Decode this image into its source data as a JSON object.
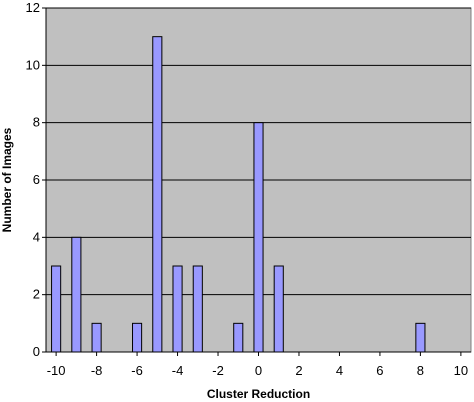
{
  "chart_data": {
    "type": "bar",
    "title": "",
    "xlabel": "Cluster Reduction",
    "ylabel": "Number of Images",
    "xlim": [
      -10.5,
      10.5
    ],
    "ylim": [
      0,
      12
    ],
    "x_ticks": [
      -10,
      -8,
      -6,
      -4,
      -2,
      0,
      2,
      4,
      6,
      8,
      10
    ],
    "y_ticks": [
      0,
      2,
      4,
      6,
      8,
      10,
      12
    ],
    "grid": "horizontal",
    "legend": "none",
    "x": [
      -10,
      -9,
      -8,
      -6,
      -5,
      -4,
      -3,
      -1,
      0,
      1,
      8
    ],
    "values": [
      3,
      4,
      1,
      1,
      11,
      3,
      3,
      1,
      8,
      3,
      1
    ],
    "colors": {
      "plot_background": "#c0c0c0",
      "bar_fill": "#9999ff",
      "bar_stroke": "#000000",
      "gridline": "#000000"
    }
  }
}
